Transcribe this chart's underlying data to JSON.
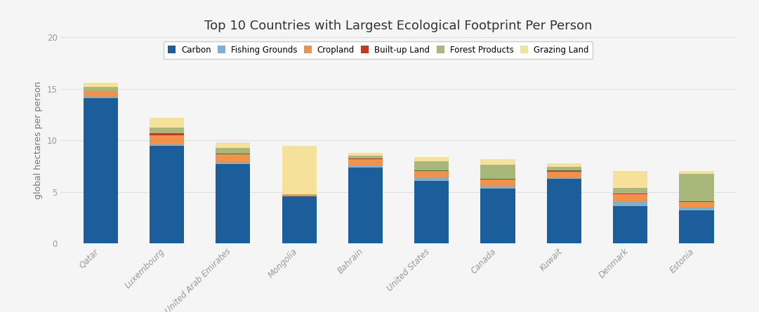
{
  "title": "Top 10 Countries with Largest Ecological Footprint Per Person",
  "ylabel": "global hectares per person",
  "categories": [
    "Qatar",
    "Luxembourg",
    "United Arab Emirates",
    "Mongolia",
    "Bahrain",
    "United States",
    "Canada",
    "Kuwait",
    "Denmark",
    "Estonia"
  ],
  "components": [
    "Carbon",
    "Fishing Grounds",
    "Cropland",
    "Built-up Land",
    "Forest Products",
    "Grazing Land"
  ],
  "colors": [
    "#1b5e9b",
    "#7bafd4",
    "#f0924a",
    "#c0392b",
    "#a8b87c",
    "#f5e199"
  ],
  "data": {
    "Qatar": [
      14.1,
      0.12,
      0.6,
      0.05,
      0.35,
      0.38
    ],
    "Luxembourg": [
      9.5,
      0.12,
      0.9,
      0.15,
      0.55,
      0.95
    ],
    "United Arab Emirates": [
      7.7,
      0.18,
      0.8,
      0.06,
      0.55,
      0.52
    ],
    "Mongolia": [
      4.55,
      0.04,
      0.12,
      0.02,
      0.07,
      4.7
    ],
    "Bahrain": [
      7.35,
      0.22,
      0.6,
      0.05,
      0.3,
      0.28
    ],
    "United States": [
      6.1,
      0.32,
      0.62,
      0.05,
      0.9,
      0.41
    ],
    "Canada": [
      5.3,
      0.28,
      0.62,
      0.05,
      1.35,
      0.6
    ],
    "Kuwait": [
      6.25,
      0.12,
      0.55,
      0.15,
      0.35,
      0.38
    ],
    "Denmark": [
      3.6,
      0.52,
      0.65,
      0.1,
      0.55,
      1.58
    ],
    "Estonia": [
      3.2,
      0.32,
      0.52,
      0.05,
      2.65,
      0.26
    ]
  },
  "ylim": [
    0,
    20
  ],
  "yticks": [
    0,
    5,
    10,
    15,
    20
  ],
  "background_color": "#f5f5f5",
  "grid_color": "#e0e0e0",
  "title_fontsize": 13,
  "label_fontsize": 9,
  "tick_fontsize": 8.5,
  "legend_fontsize": 8.5
}
